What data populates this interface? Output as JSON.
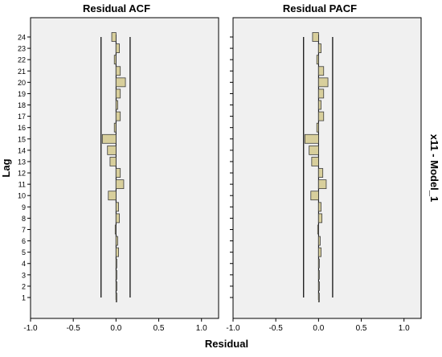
{
  "figure": {
    "y_axis_title": "Lag",
    "x_axis_title": "Residual",
    "row_label": "x11 - Model_1"
  },
  "colors": {
    "panel_bg": "#f0f0f0",
    "bar_fill": "#d8cf9c",
    "bar_stroke": "#3c3c3c",
    "line": "#000000"
  },
  "chart_data": [
    {
      "type": "bar",
      "orientation": "horizontal",
      "title": "Residual ACF",
      "xlabel": "Residual",
      "ylabel": "Lag",
      "xlim": [
        -1.0,
        1.2
      ],
      "x_ticks": [
        "-1.0",
        "-0.5",
        "0.0",
        "0.5",
        "1.0"
      ],
      "categories": [
        "1",
        "2",
        "3",
        "4",
        "5",
        "6",
        "7",
        "8",
        "9",
        "10",
        "11",
        "12",
        "13",
        "14",
        "15",
        "16",
        "17",
        "18",
        "19",
        "20",
        "21",
        "22",
        "23",
        "24"
      ],
      "values": [
        0.005,
        0.01,
        0.003,
        0.004,
        0.03,
        0.02,
        -0.01,
        0.04,
        0.03,
        -0.09,
        0.09,
        0.05,
        -0.07,
        -0.1,
        -0.16,
        -0.02,
        0.05,
        0.02,
        0.05,
        0.11,
        0.05,
        -0.02,
        0.04,
        -0.05
      ],
      "confidence_limits": {
        "lower": -0.175,
        "upper": 0.165
      }
    },
    {
      "type": "bar",
      "orientation": "horizontal",
      "title": "Residual PACF",
      "xlabel": "Residual",
      "ylabel": "Lag",
      "xlim": [
        -1.0,
        1.2
      ],
      "x_ticks": [
        "-1.0",
        "-0.5",
        "0.0",
        "0.5",
        "1.0"
      ],
      "categories": [
        "1",
        "2",
        "3",
        "4",
        "5",
        "6",
        "7",
        "8",
        "9",
        "10",
        "11",
        "12",
        "13",
        "14",
        "15",
        "16",
        "17",
        "18",
        "19",
        "20",
        "21",
        "22",
        "23",
        "24"
      ],
      "values": [
        0.005,
        0.01,
        0.003,
        0.004,
        0.03,
        0.02,
        -0.01,
        0.04,
        0.03,
        -0.09,
        0.09,
        0.05,
        -0.08,
        -0.11,
        -0.16,
        -0.02,
        0.06,
        0.03,
        0.06,
        0.11,
        0.06,
        -0.02,
        0.03,
        -0.07
      ],
      "confidence_limits": {
        "lower": -0.175,
        "upper": 0.165
      }
    }
  ]
}
